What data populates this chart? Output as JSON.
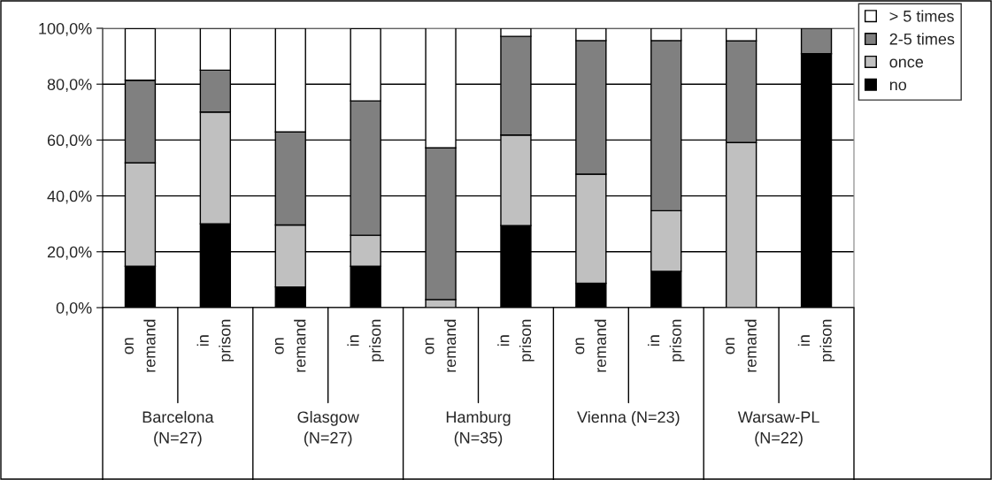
{
  "chart_data": {
    "type": "bar",
    "stacked": true,
    "categories": [
      "on\nremand",
      "in\nprison",
      "on\nremand",
      "in\nprison",
      "on\nremand",
      "in\nprison",
      "on\nremand",
      "in\nprison",
      "on\nremand",
      "in\nprison"
    ],
    "series": [
      {
        "name": "no",
        "color": "#000000",
        "values": [
          14.8,
          30.0,
          7.4,
          14.8,
          0,
          29.4,
          8.7,
          13.0,
          0,
          90.9
        ]
      },
      {
        "name": "once",
        "color": "#c0c0c0",
        "values": [
          37.0,
          40.0,
          22.2,
          11.1,
          2.9,
          32.4,
          39.1,
          21.7,
          59.1,
          0
        ]
      },
      {
        "name": "2-5 times",
        "color": "#808080",
        "values": [
          29.6,
          15.0,
          33.3,
          48.1,
          54.3,
          35.3,
          47.8,
          60.9,
          36.4,
          9.1
        ]
      },
      {
        "name": "> 5 times",
        "color": "#ffffff",
        "values": [
          18.5,
          15.0,
          37.1,
          25.9,
          42.9,
          2.9,
          4.4,
          4.4,
          4.5,
          0
        ]
      }
    ],
    "annotations": [
      "Barcelona\n(N=27)",
      "Glasgow\n(N=27)",
      "Hamburg\n(N=35)",
      "Vienna (N=23)",
      "Warsaw-PL\n(N=22)"
    ],
    "ylim": [
      0,
      100
    ],
    "yticks": [
      {
        "value": 0,
        "label": "0,0%"
      },
      {
        "value": 20,
        "label": "20,0%"
      },
      {
        "value": 40,
        "label": "40,0%"
      },
      {
        "value": 60,
        "label": "60,0%"
      },
      {
        "value": 80,
        "label": "80,0%"
      },
      {
        "value": 100,
        "label": "100,0%"
      }
    ],
    "grid": "y",
    "legend": "top right"
  }
}
